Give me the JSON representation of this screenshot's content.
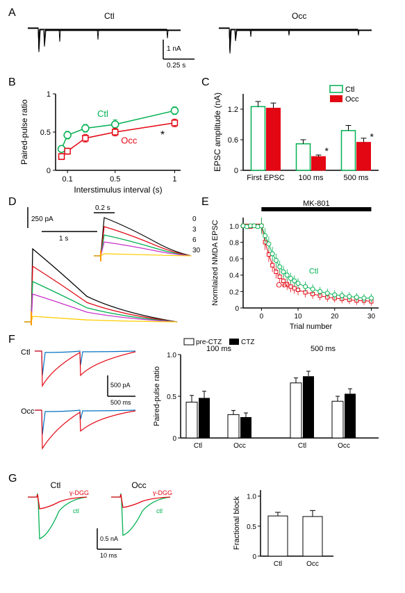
{
  "panelA": {
    "label": "A",
    "left_title": "Ctl",
    "right_title": "Occ",
    "scalebar_y": "1 nA",
    "scalebar_x": "0.25 s"
  },
  "panelB": {
    "label": "B",
    "xlabel": "Interstimulus interval (s)",
    "ylabel": "Paired-pulse ratio",
    "xlim": [
      0,
      1.05
    ],
    "ylim": [
      0,
      1
    ],
    "xtick_positions": [
      0.1,
      0.5,
      1.0
    ],
    "xtick_labels": [
      "0.1",
      "0.5",
      "1"
    ],
    "ytick_positions": [
      0,
      0.5,
      1
    ],
    "ytick_labels": [
      "0",
      "0.5",
      "1"
    ],
    "ctl_label": "Ctl",
    "occ_label": "Occ",
    "significance": "*",
    "series": {
      "ctl": {
        "color": "#00b050",
        "x": [
          0.05,
          0.1,
          0.25,
          0.5,
          1.0
        ],
        "y": [
          0.28,
          0.46,
          0.55,
          0.6,
          0.78
        ],
        "err": [
          0.04,
          0.05,
          0.05,
          0.06,
          0.05
        ]
      },
      "occ": {
        "color": "#e30613",
        "x": [
          0.05,
          0.1,
          0.25,
          0.5,
          1.0
        ],
        "y": [
          0.18,
          0.25,
          0.42,
          0.5,
          0.62
        ],
        "err": [
          0.04,
          0.04,
          0.05,
          0.05,
          0.05
        ]
      }
    }
  },
  "panelC": {
    "label": "C",
    "ylabel": "EPSC amplitude (nA)",
    "categories": [
      "First EPSC",
      "100 ms",
      "500 ms"
    ],
    "ylim": [
      0,
      1.5
    ],
    "ytick_positions": [
      0,
      0.6,
      1.2
    ],
    "ytick_labels": [
      "0",
      "0.6",
      "1.2"
    ],
    "legend": {
      "ctl": "Ctl",
      "occ": "Occ"
    },
    "ctl_color": "#00b050",
    "occ_color": "#e30613",
    "bars": {
      "ctl": {
        "values": [
          1.25,
          0.52,
          0.78
        ],
        "err": [
          0.1,
          0.08,
          0.1
        ]
      },
      "occ": {
        "values": [
          1.22,
          0.27,
          0.55
        ],
        "err": [
          0.1,
          0.03,
          0.08
        ],
        "sig": [
          "",
          "*",
          "*"
        ]
      }
    }
  },
  "panelD": {
    "label": "D",
    "scalebar_y": "250 pA",
    "scalebar_x": "1 s",
    "inset_scalebar_x": "0.2 s",
    "trace_numbers": [
      "0",
      "3",
      "6",
      "30"
    ],
    "colors": [
      "#000000",
      "#e30613",
      "#00b050",
      "#c931c9",
      "#ffcc00"
    ]
  },
  "panelE": {
    "label": "E",
    "xlabel": "Trial number",
    "ylabel": "Normlaized NMDA EPSC",
    "bar_label": "MK-801",
    "xlim": [
      -5,
      32
    ],
    "ylim": [
      0,
      1.1
    ],
    "xtick_positions": [
      0,
      10,
      20,
      30
    ],
    "xtick_labels": [
      "0",
      "10",
      "20",
      "30"
    ],
    "ytick_positions": [
      0,
      0.2,
      0.4,
      0.6,
      0.8,
      1.0
    ],
    "ytick_labels": [
      "0",
      "0.2",
      "0.4",
      "0.6",
      "0.8",
      "1.0"
    ],
    "ctl_label": "Ctl",
    "occ_label": "Occ",
    "ctl_color": "#00b050",
    "occ_color": "#e30613",
    "series": {
      "ctl": {
        "x": [
          -5,
          -4,
          -3,
          -2,
          -1,
          0,
          1,
          2,
          3,
          4,
          5,
          6,
          7,
          8,
          9,
          10,
          12,
          14,
          16,
          18,
          20,
          22,
          24,
          26,
          28,
          30
        ],
        "y": [
          1.0,
          0.99,
          1.0,
          1.0,
          0.99,
          1.0,
          0.88,
          0.78,
          0.66,
          0.58,
          0.5,
          0.44,
          0.4,
          0.36,
          0.33,
          0.3,
          0.26,
          0.23,
          0.2,
          0.18,
          0.16,
          0.15,
          0.14,
          0.13,
          0.12,
          0.12
        ]
      },
      "occ": {
        "x": [
          -5,
          -4,
          -3,
          -2,
          -1,
          0,
          1,
          2,
          3,
          4,
          5,
          6,
          7,
          8,
          9,
          10,
          12,
          14,
          16,
          18,
          20,
          22,
          24,
          26,
          28,
          30
        ],
        "y": [
          1.0,
          1.0,
          0.99,
          1.0,
          1.0,
          1.0,
          0.8,
          0.65,
          0.52,
          0.44,
          0.38,
          0.33,
          0.29,
          0.26,
          0.24,
          0.22,
          0.19,
          0.17,
          0.15,
          0.13,
          0.12,
          0.11,
          0.1,
          0.09,
          0.09,
          0.08
        ]
      }
    }
  },
  "panelF": {
    "label": "F",
    "ctl_label": "Ctl",
    "occ_label": "Occ",
    "scalebar_y": "500 pA",
    "scalebar_x": "500 ms",
    "legend": {
      "pre": "pre-CTZ",
      "ctz": "CTZ"
    },
    "pre_color": "#ffffff",
    "ctz_color": "#000000",
    "ylabel": "Paired-pulse ratio",
    "group_labels": [
      "100 ms",
      "500 ms"
    ],
    "categories": [
      "Ctl",
      "Occ",
      "Ctl",
      "Occ"
    ],
    "ylim": [
      0,
      1.0
    ],
    "ytick_positions": [
      0,
      0.5,
      1.0
    ],
    "ytick_labels": [
      "0",
      "0.5",
      "1.0"
    ],
    "bars": {
      "pre": {
        "values": [
          0.43,
          0.28,
          0.66,
          0.44
        ],
        "err": [
          0.08,
          0.05,
          0.06,
          0.06
        ]
      },
      "ctz": {
        "values": [
          0.48,
          0.25,
          0.74,
          0.53
        ],
        "err": [
          0.08,
          0.05,
          0.06,
          0.06
        ]
      }
    },
    "trace_colors": {
      "blue": "#0070c0",
      "red": "#e30613"
    }
  },
  "panelG": {
    "label": "G",
    "ctl_title": "Ctl",
    "occ_title": "Occ",
    "dgg_label": "γ-DGG",
    "ctl_trace_label": "ctl",
    "scalebar_y": "0.5 nA",
    "scalebar_x": "10 ms",
    "ylabel": "Fractional block",
    "categories": [
      "Ctl",
      "Occ"
    ],
    "ylim": [
      0,
      1.1
    ],
    "ytick_positions": [
      0,
      0.5,
      1.0
    ],
    "ytick_labels": [
      "0",
      "0.5",
      "1.0"
    ],
    "bars": {
      "values": [
        0.67,
        0.66
      ],
      "err": [
        0.06,
        0.1
      ],
      "colors": [
        "#ffffff",
        "#ffffff"
      ]
    },
    "trace_colors": {
      "ctl": "#00b050",
      "dgg": "#e30613"
    }
  }
}
